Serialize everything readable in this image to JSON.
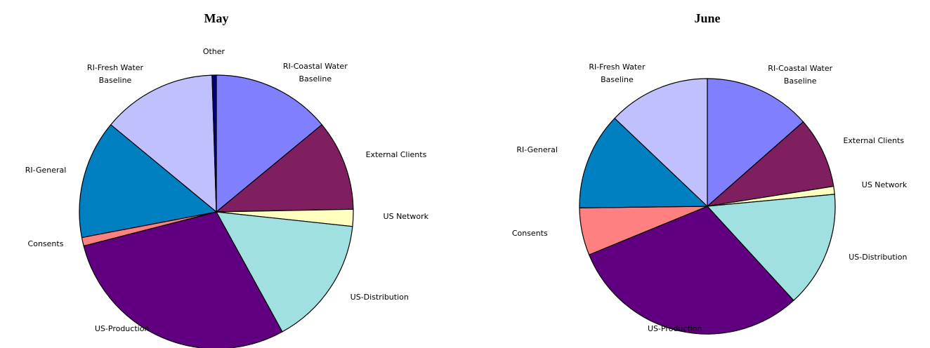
{
  "chart_data": [
    {
      "type": "pie",
      "title": "May",
      "categories": [
        "RI-Coastal Water Baseline",
        "External Clients",
        "US Network",
        "US-Distribution",
        "US-Production",
        "Consents",
        "RI-General",
        "RI-Fresh Water Baseline",
        "Other"
      ],
      "values": [
        14,
        10.7,
        2,
        15.3,
        29,
        1,
        14,
        13.5,
        0.5
      ],
      "colors": [
        "#8080ff",
        "#7f1f5f",
        "#ffffc0",
        "#a0e0e0",
        "#600080",
        "#ff8080",
        "#0080c0",
        "#c0c0ff",
        "#000080"
      ]
    },
    {
      "type": "pie",
      "title": "June",
      "categories": [
        "RI-Coastal Water Baseline",
        "External Clients",
        "US Network",
        "US-Distribution",
        "US-Production",
        "Consents",
        "RI-General",
        "RI-Fresh Water Baseline"
      ],
      "values": [
        13.5,
        9,
        1,
        14.7,
        30.6,
        6,
        12.3,
        12.9
      ],
      "colors": [
        "#8080ff",
        "#7f1f5f",
        "#ffffc0",
        "#a0e0e0",
        "#600080",
        "#ff8080",
        "#0080c0",
        "#c0c0ff"
      ]
    }
  ]
}
